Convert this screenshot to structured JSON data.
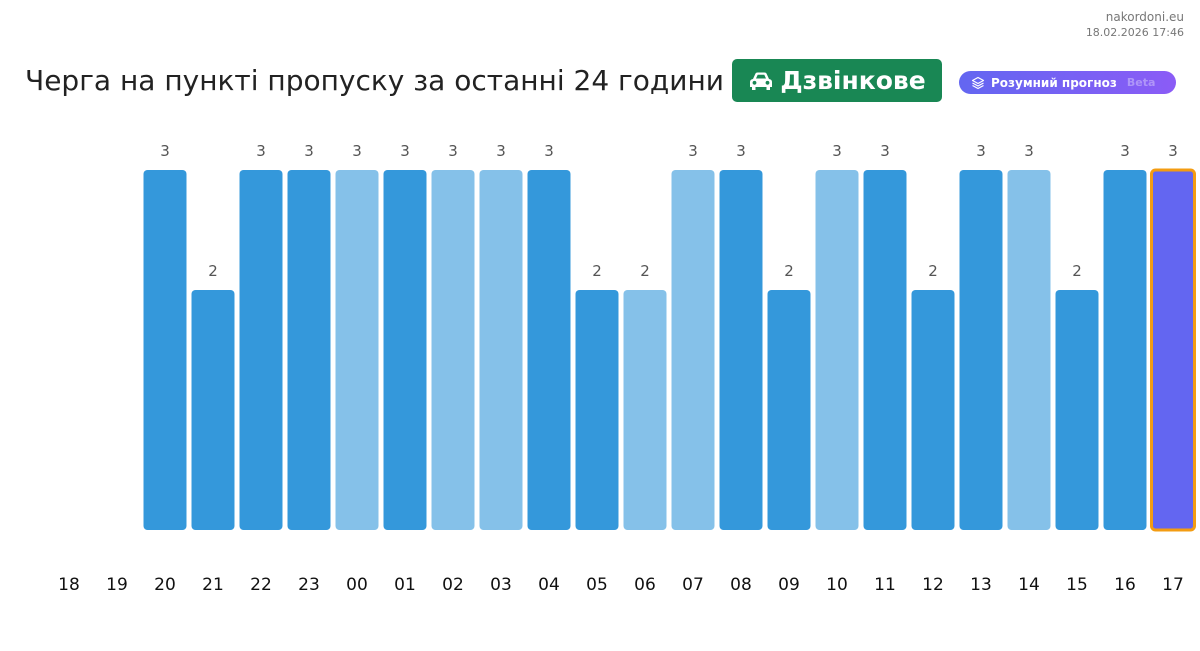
{
  "brand": {
    "site": "nakordoni.eu",
    "datetime": "18.02.2026 17:46"
  },
  "header": {
    "title": "Черга на пункті пропуску за останні 24 години",
    "checkpoint": "Дзвінкове",
    "checkpoint_icon": "car-icon",
    "forecast_label": "Розумний прогноз",
    "forecast_icon": "layers-icon",
    "forecast_tag": "Beta"
  },
  "colors": {
    "bar_dark": "#3498db",
    "bar_light": "#85c1e9",
    "bar_current": "#6366f1",
    "bar_current_border": "#f39c12",
    "badge": "#198754"
  },
  "chart_data": {
    "type": "bar",
    "title": "",
    "xlabel": "",
    "ylabel": "",
    "categories": [
      "18",
      "19",
      "20",
      "21",
      "22",
      "23",
      "00",
      "01",
      "02",
      "03",
      "04",
      "05",
      "06",
      "07",
      "08",
      "09",
      "10",
      "11",
      "12",
      "13",
      "14",
      "15",
      "16",
      "17"
    ],
    "values": [
      null,
      null,
      3,
      2,
      3,
      3,
      3,
      3,
      3,
      3,
      3,
      2,
      2,
      3,
      3,
      2,
      3,
      3,
      2,
      3,
      3,
      2,
      3,
      3
    ],
    "shade": [
      null,
      null,
      "dark",
      "dark",
      "dark",
      "dark",
      "light",
      "dark",
      "light",
      "light",
      "dark",
      "dark",
      "light",
      "light",
      "dark",
      "dark",
      "light",
      "dark",
      "dark",
      "dark",
      "light",
      "dark",
      "dark",
      "current"
    ],
    "ylim": [
      0,
      3
    ],
    "grid": false,
    "legend": "none"
  }
}
